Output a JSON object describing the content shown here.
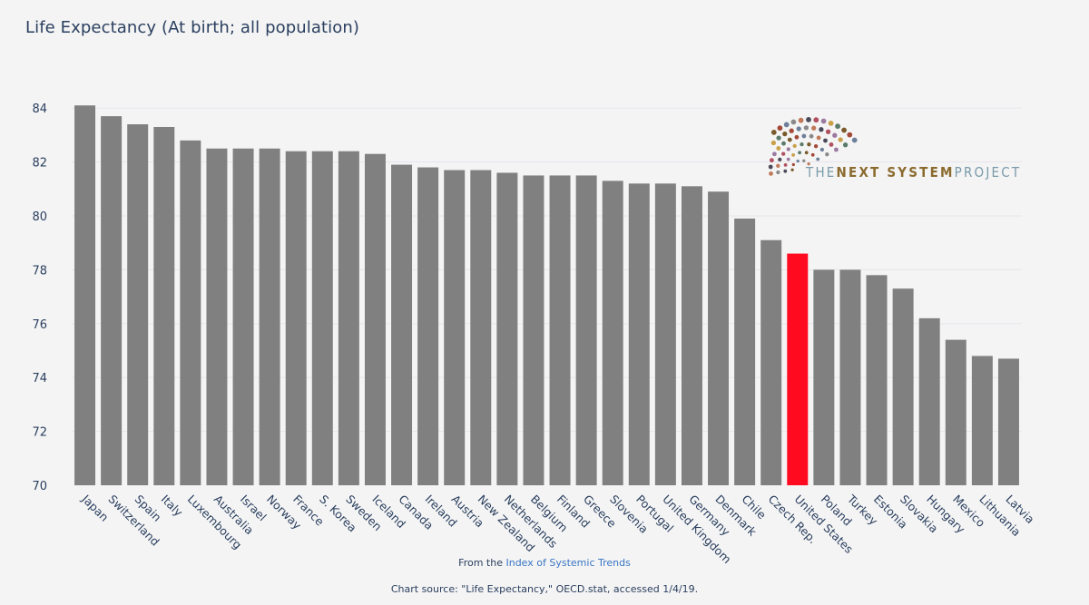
{
  "title": "Life Expectancy (At birth; all population)",
  "footer": {
    "from_prefix": "From the ",
    "from_link": "Index of Systemic Trends",
    "source": "Chart source: \"Life Expectancy,\" OECD.stat, accessed 1/4/19."
  },
  "logo": {
    "word_the": "THE",
    "word_next_system": "NEXT SYSTEM",
    "word_project": "PROJECT"
  },
  "colors": {
    "bar": "#808080",
    "highlight": "#ff0a1f",
    "grid": "#e6e6ee",
    "axis_text": "#2a3f5f"
  },
  "chart_data": {
    "type": "bar",
    "title": "Life Expectancy (At birth; all population)",
    "xlabel": "",
    "ylabel": "",
    "ylim": [
      70,
      84.5
    ],
    "yticks": [
      70,
      72,
      74,
      76,
      78,
      80,
      82,
      84
    ],
    "grid": true,
    "highlight_category": "United States",
    "categories": [
      "Japan",
      "Switzerland",
      "Spain",
      "Italy",
      "Luxembourg",
      "Australia",
      "Israel",
      "Norway",
      "France",
      "S. Korea",
      "Sweden",
      "Iceland",
      "Canada",
      "Ireland",
      "Austria",
      "New Zealand",
      "Netherlands",
      "Belgium",
      "Finland",
      "Greece",
      "Slovenia",
      "Portugal",
      "United Kingdom",
      "Germany",
      "Denmark",
      "Chile",
      "Czech Rep.",
      "United States",
      "Poland",
      "Turkey",
      "Estonia",
      "Slovakia",
      "Hungary",
      "Mexico",
      "Lithuania",
      "Latvia"
    ],
    "values": [
      84.1,
      83.7,
      83.4,
      83.3,
      82.8,
      82.5,
      82.5,
      82.5,
      82.4,
      82.4,
      82.4,
      82.3,
      81.9,
      81.8,
      81.7,
      81.7,
      81.6,
      81.5,
      81.5,
      81.5,
      81.3,
      81.2,
      81.2,
      81.1,
      80.9,
      79.9,
      79.1,
      78.6,
      78.0,
      78.0,
      77.8,
      77.3,
      76.2,
      75.4,
      74.8,
      74.7
    ]
  }
}
